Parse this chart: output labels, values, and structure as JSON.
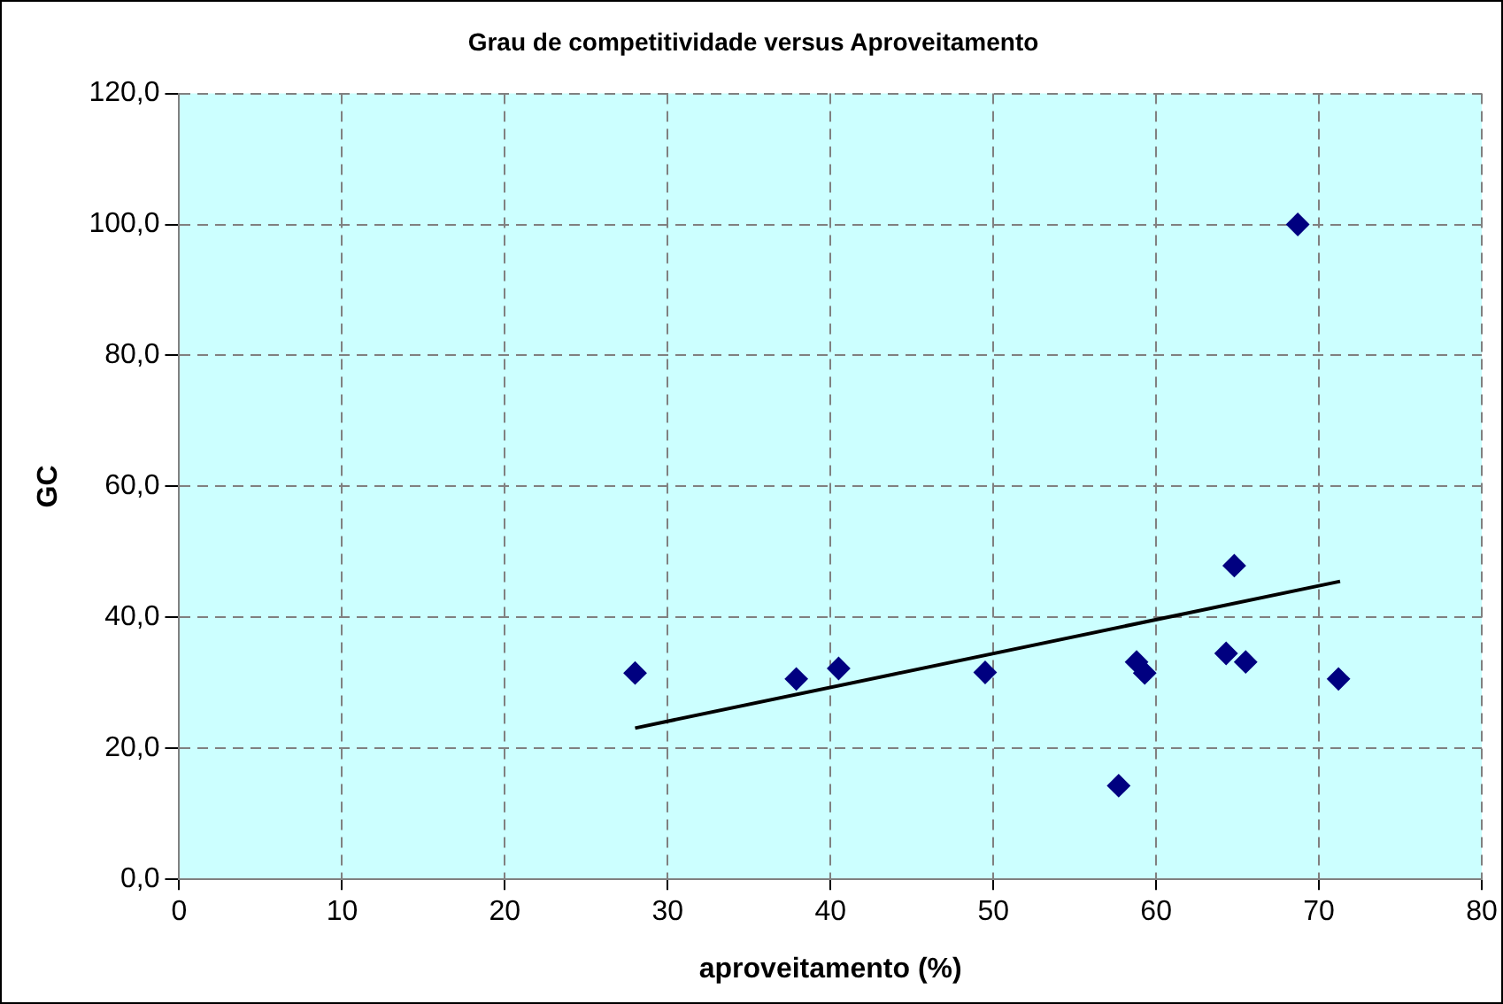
{
  "chart_data": {
    "type": "scatter",
    "title": "Grau de competitividade versus Aproveitamento",
    "xlabel": "aproveitamento (%)",
    "ylabel": "GC",
    "x": [
      28.0,
      37.9,
      40.5,
      49.5,
      57.7,
      58.8,
      59.3,
      64.3,
      64.8,
      65.5,
      68.7,
      71.2
    ],
    "series": [
      {
        "color": "#000080",
        "marker": "diamond",
        "values": [
          31.5,
          30.6,
          32.2,
          31.6,
          14.3,
          33.2,
          31.5,
          34.5,
          47.9,
          33.2,
          100.0,
          30.6
        ]
      },
      {
        "type": "line",
        "marker": "none",
        "color": "#000000",
        "x": [
          28.0,
          71.3
        ],
        "values": [
          23.1,
          45.5
        ]
      }
    ],
    "xlim": [
      0,
      80
    ],
    "xticks": [
      0,
      10,
      20,
      30,
      40,
      50,
      60,
      70,
      80
    ],
    "ylim": [
      0,
      120
    ],
    "yticks": [
      {
        "value": 0,
        "label": "0,0"
      },
      {
        "value": 20,
        "label": "20,0"
      },
      {
        "value": 40,
        "label": "40,0"
      },
      {
        "value": 60,
        "label": "60,0"
      },
      {
        "value": 80,
        "label": "80,0"
      },
      {
        "value": 100,
        "label": "100,0"
      },
      {
        "value": 120,
        "label": "120,0"
      }
    ],
    "grid": true,
    "legend": false
  }
}
